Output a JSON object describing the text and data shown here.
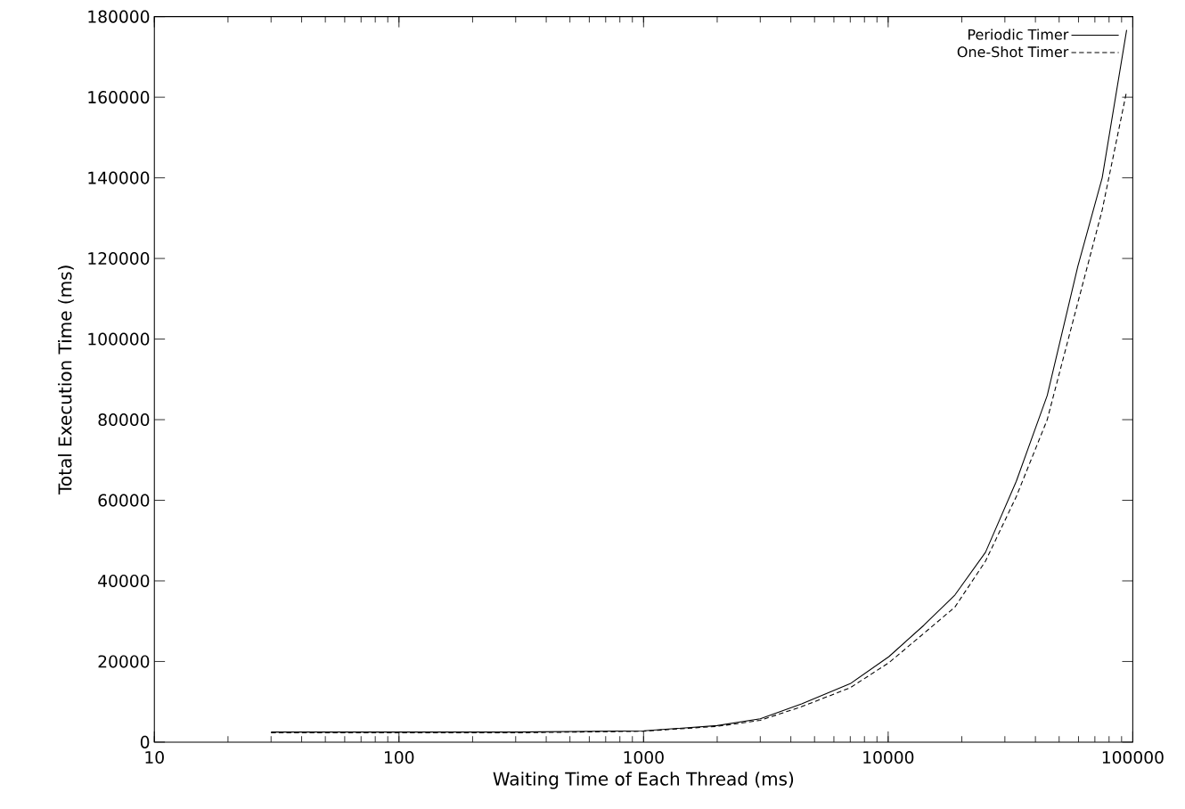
{
  "chart_data": {
    "type": "line",
    "xlabel": "Waiting Time of Each Thread (ms)",
    "ylabel": "Total Execution Time (ms)",
    "log": "x",
    "xlim": [
      10,
      100000
    ],
    "xticks": [
      10,
      100,
      1000,
      10000,
      100000
    ],
    "ylim": [
      0,
      180000
    ],
    "yticks": [
      0,
      20000,
      40000,
      60000,
      80000,
      100000,
      120000,
      140000,
      160000,
      180000
    ],
    "legend": "top right",
    "series": [
      {
        "name": "Periodic Timer",
        "color": "#000000",
        "line_style": "solid",
        "x": [
          30,
          100,
          300,
          1000,
          2000,
          3000,
          4430,
          7000,
          10070,
          14000,
          18750,
          25000,
          33400,
          44700,
          59600,
          75000,
          94400
        ],
        "values": [
          2500,
          2500,
          2500,
          2800,
          4100,
          5800,
          9500,
          14500,
          21200,
          29000,
          36500,
          47100,
          64700,
          86000,
          118000,
          140000,
          176700
        ]
      },
      {
        "name": "One-Shot Timer",
        "color": "#000000",
        "line_style": "dashed",
        "x": [
          30,
          100,
          300,
          1000,
          2000,
          3000,
          4430,
          7000,
          10070,
          14000,
          18750,
          25000,
          33400,
          44700,
          59600,
          75000,
          94400
        ],
        "values": [
          2300,
          2300,
          2300,
          2700,
          3900,
          5400,
          8800,
          13500,
          19700,
          27000,
          33500,
          44900,
          60900,
          80000,
          109000,
          132000,
          161500
        ]
      }
    ]
  }
}
